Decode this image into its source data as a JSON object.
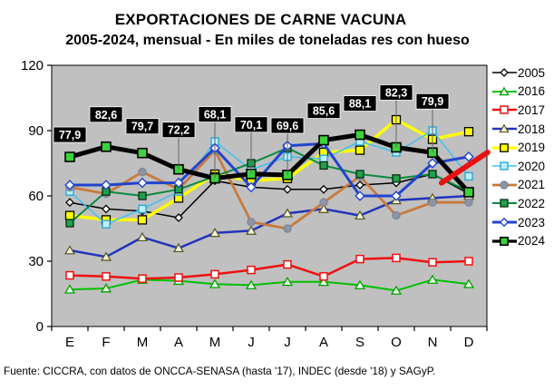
{
  "title": "EXPORTACIONES DE CARNE VACUNA",
  "subtitle": "2005-2024, mensual - En miles de toneladas res con hueso",
  "footer": "Fuente: CICCRA, con datos de ONCCA-SENASA (hasta '17), INDEC (desde '18) y SAGyP.",
  "chart_data": {
    "type": "line",
    "title": "EXPORTACIONES DE CARNE VACUNA",
    "subtitle": "2005-2024, mensual - En miles de toneladas res con hueso",
    "categories": [
      "E",
      "F",
      "M",
      "A",
      "M",
      "J",
      "J",
      "A",
      "S",
      "O",
      "N",
      "D"
    ],
    "ylim": [
      0,
      120
    ],
    "y_ticks": [
      0,
      30,
      60,
      90,
      120
    ],
    "grid": false,
    "plot_bg": "#C0C0C0",
    "legend_position": "right",
    "series": [
      {
        "name": "2005",
        "color": "#000000",
        "width": 1.5,
        "marker": {
          "shape": "diamond",
          "size": 4,
          "fill": "#FFFFFF",
          "stroke": "#000000",
          "stroke_width": 1.3
        },
        "values": [
          57,
          54,
          53,
          50,
          67,
          64,
          63,
          63,
          65,
          66,
          70,
          61
        ]
      },
      {
        "name": "2016",
        "color": "#00C000",
        "width": 2,
        "marker": {
          "shape": "triangle",
          "size": 4.5,
          "fill": "#EFFFEF",
          "stroke": "#00A000",
          "stroke_width": 1.3
        },
        "values": [
          17,
          17.5,
          21.5,
          21,
          19.5,
          19,
          20.5,
          20.5,
          19,
          16.5,
          21.5,
          19.5
        ]
      },
      {
        "name": "2017",
        "color": "#F01010",
        "width": 2.5,
        "marker": {
          "shape": "square",
          "size": 4,
          "fill": "#FFFFFF",
          "stroke": "#F01010",
          "stroke_width": 1.5
        },
        "values": [
          23.5,
          23,
          22,
          22.5,
          24,
          26,
          28.5,
          23,
          31,
          31.5,
          29.5,
          30
        ]
      },
      {
        "name": "2018",
        "color": "#2233BB",
        "width": 2.5,
        "marker": {
          "shape": "triangle",
          "size": 4.5,
          "fill": "#F2F2D8",
          "stroke": "#555522",
          "stroke_width": 1.2
        },
        "values": [
          35,
          32,
          41,
          36,
          43,
          44,
          52,
          54,
          51,
          58,
          59,
          60
        ]
      },
      {
        "name": "2019",
        "color": "#FFFF00",
        "width": 3.5,
        "marker": {
          "shape": "square",
          "size": 4.5,
          "fill": "#FFFF00",
          "stroke": "#000000",
          "stroke_width": 1.3
        },
        "values": [
          51,
          49,
          49,
          59,
          70,
          67,
          68,
          80,
          81,
          95,
          86,
          89.5
        ]
      },
      {
        "name": "2020",
        "color": "#45BFEF",
        "width": 1.6,
        "marker": {
          "shape": "square",
          "size": 4,
          "fill": "#BFeFFB",
          "stroke": "#29A8D6",
          "stroke_width": 1.4
        },
        "values": [
          62,
          47,
          54,
          62,
          85,
          72,
          78,
          77,
          85,
          80,
          90,
          69
        ]
      },
      {
        "name": "2021",
        "color": "#C87A3C",
        "width": 2.8,
        "marker": {
          "shape": "circle",
          "size": 4.2,
          "fill": "#8C94A8",
          "stroke": "#7A8296",
          "stroke_width": 1
        },
        "values": [
          64,
          61,
          71,
          63,
          81,
          48,
          45,
          57,
          69,
          51,
          57,
          57
        ]
      },
      {
        "name": "2022",
        "color": "#0A8A40",
        "width": 2,
        "marker": {
          "shape": "square",
          "size": 4,
          "fill": "#1FA24A",
          "stroke": "#062A12",
          "stroke_width": 1.3
        },
        "values": [
          47.5,
          62,
          60,
          63,
          69,
          75,
          82,
          74,
          70,
          68,
          70,
          62
        ]
      },
      {
        "name": "2023",
        "color": "#2244CC",
        "width": 3,
        "marker": {
          "shape": "diamond",
          "size": 4.8,
          "fill": "#FFFFFF",
          "stroke": "#2244CC",
          "stroke_width": 1.4
        },
        "values": [
          65,
          65,
          66,
          66,
          82,
          64,
          83,
          84,
          60,
          60,
          75,
          78
        ]
      },
      {
        "name": "2024",
        "color": "#000000",
        "width": 5,
        "marker": {
          "shape": "square",
          "size": 5,
          "fill": "#3BD33B",
          "stroke": "#000000",
          "stroke_width": 1.6
        },
        "values": [
          77.9,
          82.6,
          79.7,
          72.2,
          68.1,
          70.1,
          69.6,
          85.6,
          88.1,
          82.3,
          79.9,
          61.7
        ],
        "labels": [
          "77,9",
          "82,6",
          "79,7",
          "72,2",
          "68,1",
          "70,1",
          "69,6",
          "85,6",
          "88,1",
          "82,3",
          "79,9",
          null
        ],
        "label_offsets": [
          16,
          27,
          21,
          35,
          62,
          46,
          46,
          24,
          26,
          52,
          48,
          0
        ]
      }
    ],
    "annotations": [
      {
        "type": "trend-line",
        "color": "#E81212",
        "width": 6,
        "from_month": 10.25,
        "from_value": 66,
        "to_month": 11.52,
        "to_value": 80
      }
    ]
  }
}
